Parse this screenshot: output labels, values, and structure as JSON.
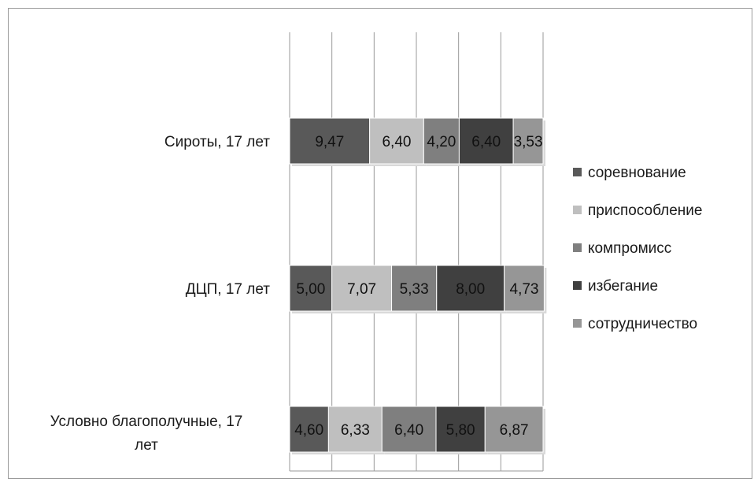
{
  "chart_data": {
    "type": "bar",
    "orientation": "horizontal",
    "stacked": true,
    "categories": [
      "Сироты, 17 лет",
      "ДЦП, 17 лет",
      "Условно благополучные, 17 лет"
    ],
    "series": [
      {
        "name": "соревнование",
        "color": "#595959",
        "values": [
          9.47,
          5.0,
          4.6
        ],
        "labels": [
          "9,47",
          "5,00",
          "4,60"
        ]
      },
      {
        "name": "приспособление",
        "color": "#bfbfbf",
        "values": [
          6.4,
          7.07,
          6.33
        ],
        "labels": [
          "6,40",
          "7,07",
          "6,33"
        ]
      },
      {
        "name": "компромисс",
        "color": "#7f7f7f",
        "values": [
          4.2,
          5.33,
          6.4
        ],
        "labels": [
          "4,20",
          "5,33",
          "6,40"
        ]
      },
      {
        "name": "избегание",
        "color": "#404040",
        "values": [
          6.4,
          8.0,
          5.8
        ],
        "labels": [
          "6,40",
          "8,00",
          "5,80"
        ]
      },
      {
        "name": "сотрудничество",
        "color": "#969696",
        "values": [
          3.53,
          4.73,
          6.87
        ],
        "labels": [
          "3,53",
          "4,73",
          "6,87"
        ]
      }
    ],
    "xlim": [
      0,
      30
    ],
    "grid": true,
    "legend_position": "right"
  }
}
